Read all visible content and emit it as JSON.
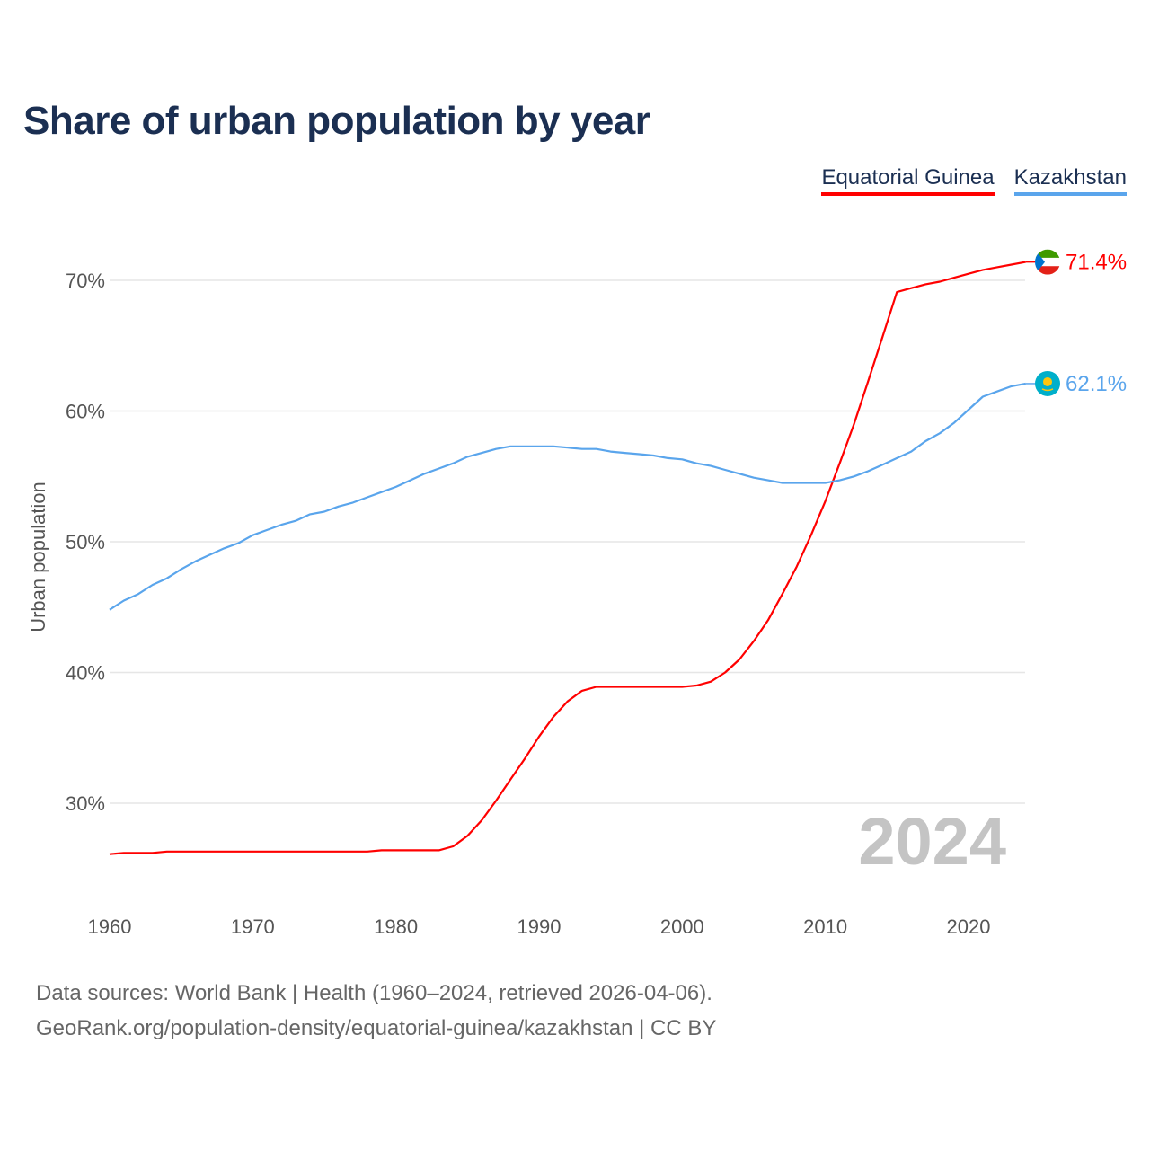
{
  "chart_data": {
    "type": "line",
    "title": "Share of urban population by year",
    "xlabel": "",
    "ylabel": "Urban population",
    "xlim": [
      1960,
      2024
    ],
    "ylim": [
      23,
      74
    ],
    "x_ticks": [
      1960,
      1970,
      1980,
      1990,
      2000,
      2010,
      2020
    ],
    "x_tick_labels": [
      "1960",
      "1970",
      "1980",
      "1990",
      "2000",
      "2010",
      "2020"
    ],
    "y_ticks": [
      30,
      40,
      50,
      60,
      70
    ],
    "y_tick_labels": [
      "30%",
      "40%",
      "50%",
      "60%",
      "70%"
    ],
    "grid": true,
    "legend_position": "top-right",
    "year_watermark": "2024",
    "x": [
      1960,
      1961,
      1962,
      1963,
      1964,
      1965,
      1966,
      1967,
      1968,
      1969,
      1970,
      1971,
      1972,
      1973,
      1974,
      1975,
      1976,
      1977,
      1978,
      1979,
      1980,
      1981,
      1982,
      1983,
      1984,
      1985,
      1986,
      1987,
      1988,
      1989,
      1990,
      1991,
      1992,
      1993,
      1994,
      1995,
      1996,
      1997,
      1998,
      1999,
      2000,
      2001,
      2002,
      2003,
      2004,
      2005,
      2006,
      2007,
      2008,
      2009,
      2010,
      2011,
      2012,
      2013,
      2014,
      2015,
      2016,
      2017,
      2018,
      2019,
      2020,
      2021,
      2022,
      2023,
      2024
    ],
    "series": [
      {
        "name": "Equatorial Guinea",
        "color": "#ff0000",
        "end_label": "71.4%",
        "values": [
          26.1,
          26.2,
          26.2,
          26.2,
          26.3,
          26.3,
          26.3,
          26.3,
          26.3,
          26.3,
          26.3,
          26.3,
          26.3,
          26.3,
          26.3,
          26.3,
          26.3,
          26.3,
          26.3,
          26.4,
          26.4,
          26.4,
          26.4,
          26.4,
          26.7,
          27.5,
          28.7,
          30.2,
          31.8,
          33.4,
          35.1,
          36.6,
          37.8,
          38.6,
          38.9,
          38.9,
          38.9,
          38.9,
          38.9,
          38.9,
          38.9,
          39.0,
          39.3,
          40.0,
          41.0,
          42.4,
          44.0,
          46.0,
          48.1,
          50.5,
          53.1,
          56.0,
          59.0,
          62.3,
          65.7,
          69.1,
          69.4,
          69.7,
          69.9,
          70.2,
          70.5,
          70.8,
          71.0,
          71.2,
          71.4
        ]
      },
      {
        "name": "Kazakhstan",
        "color": "#5aa5ec",
        "end_label": "62.1%",
        "values": [
          44.8,
          45.5,
          46.0,
          46.7,
          47.2,
          47.9,
          48.5,
          49.0,
          49.5,
          49.9,
          50.5,
          50.9,
          51.3,
          51.6,
          52.1,
          52.3,
          52.7,
          53.0,
          53.4,
          53.8,
          54.2,
          54.7,
          55.2,
          55.6,
          56.0,
          56.5,
          56.8,
          57.1,
          57.3,
          57.3,
          57.3,
          57.3,
          57.2,
          57.1,
          57.1,
          56.9,
          56.8,
          56.7,
          56.6,
          56.4,
          56.3,
          56.0,
          55.8,
          55.5,
          55.2,
          54.9,
          54.7,
          54.5,
          54.5,
          54.5,
          54.5,
          54.7,
          55.0,
          55.4,
          55.9,
          56.4,
          56.9,
          57.7,
          58.3,
          59.1,
          60.1,
          61.1,
          61.5,
          61.9,
          62.1
        ]
      }
    ]
  },
  "footer": {
    "line1": "Data sources: World Bank | Health (1960–2024, retrieved 2026-04-06).",
    "line2": "GeoRank.org/population-density/equatorial-guinea/kazakhstan | CC BY"
  }
}
